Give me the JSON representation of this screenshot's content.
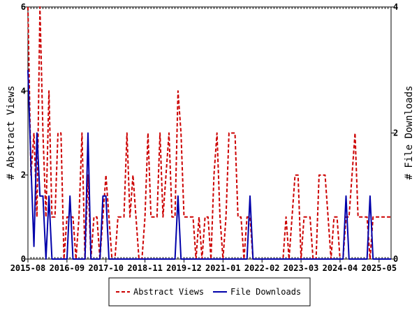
{
  "chart_data": {
    "type": "line",
    "title": "",
    "ylabel": "# Abstract Views",
    "y2label": "# File Downloads",
    "ylim": [
      0,
      6
    ],
    "y2lim": [
      0,
      4
    ],
    "yticks": [
      "0",
      "2",
      "4",
      "6"
    ],
    "y2ticks": [
      "0",
      "2",
      "4"
    ],
    "xlim": [
      "2015-08",
      "2025-09"
    ],
    "xticks": [
      "2015-08",
      "2016-09",
      "2017-10",
      "2018-11",
      "2019-12",
      "2021-01",
      "2022-02",
      "2023-03",
      "2024-04",
      "2025-05"
    ],
    "grid": false,
    "legend_position": "bottom",
    "colors": {
      "views": "#cc0000",
      "downloads": "#0000aa"
    },
    "series": [
      {
        "name": "Abstract Views",
        "axis": "left",
        "dash": true,
        "points": [
          [
            "2015-08",
            6
          ],
          [
            "2015-09",
            2
          ],
          [
            "2015-10",
            3
          ],
          [
            "2015-11",
            1
          ],
          [
            "2015-12",
            6
          ],
          [
            "2016-01",
            3
          ],
          [
            "2016-02",
            1
          ],
          [
            "2016-03",
            4
          ],
          [
            "2016-04",
            1
          ],
          [
            "2016-05",
            1
          ],
          [
            "2016-06",
            3
          ],
          [
            "2016-07",
            3
          ],
          [
            "2016-08",
            0
          ],
          [
            "2016-09",
            1
          ],
          [
            "2016-10",
            1
          ],
          [
            "2016-11",
            1
          ],
          [
            "2016-12",
            0
          ],
          [
            "2017-01",
            1
          ],
          [
            "2017-02",
            3
          ],
          [
            "2017-03",
            0
          ],
          [
            "2017-04",
            2
          ],
          [
            "2017-05",
            0
          ],
          [
            "2017-06",
            1
          ],
          [
            "2017-07",
            1
          ],
          [
            "2017-08",
            0
          ],
          [
            "2017-09",
            1
          ],
          [
            "2017-10",
            2
          ],
          [
            "2017-11",
            1
          ],
          [
            "2017-12",
            0
          ],
          [
            "2018-01",
            0
          ],
          [
            "2018-02",
            1
          ],
          [
            "2018-03",
            1
          ],
          [
            "2018-04",
            1
          ],
          [
            "2018-05",
            3
          ],
          [
            "2018-06",
            1
          ],
          [
            "2018-07",
            2
          ],
          [
            "2018-08",
            1
          ],
          [
            "2018-09",
            0
          ],
          [
            "2018-10",
            0
          ],
          [
            "2018-11",
            1
          ],
          [
            "2018-12",
            3
          ],
          [
            "2019-01",
            1
          ],
          [
            "2019-02",
            1
          ],
          [
            "2019-03",
            1
          ],
          [
            "2019-04",
            3
          ],
          [
            "2019-05",
            1
          ],
          [
            "2019-06",
            2
          ],
          [
            "2019-07",
            3
          ],
          [
            "2019-08",
            1
          ],
          [
            "2019-09",
            1
          ],
          [
            "2019-10",
            4
          ],
          [
            "2019-11",
            3
          ],
          [
            "2019-12",
            1
          ],
          [
            "2020-01",
            1
          ],
          [
            "2020-02",
            1
          ],
          [
            "2020-03",
            1
          ],
          [
            "2020-04",
            0
          ],
          [
            "2020-05",
            1
          ],
          [
            "2020-06",
            0
          ],
          [
            "2020-07",
            1
          ],
          [
            "2020-08",
            1
          ],
          [
            "2020-09",
            0
          ],
          [
            "2020-10",
            2
          ],
          [
            "2020-11",
            3
          ],
          [
            "2020-12",
            1
          ],
          [
            "2021-01",
            0
          ],
          [
            "2021-02",
            1
          ],
          [
            "2021-03",
            3
          ],
          [
            "2021-04",
            3
          ],
          [
            "2021-05",
            3
          ],
          [
            "2021-06",
            1
          ],
          [
            "2021-07",
            1
          ],
          [
            "2021-08",
            0
          ],
          [
            "2021-09",
            1
          ],
          [
            "2021-10",
            1
          ],
          [
            "2021-11",
            0
          ],
          [
            "2021-12",
            0
          ],
          [
            "2022-01",
            0
          ],
          [
            "2022-02",
            0
          ],
          [
            "2022-03",
            0
          ],
          [
            "2022-04",
            0
          ],
          [
            "2022-05",
            0
          ],
          [
            "2022-06",
            0
          ],
          [
            "2022-07",
            0
          ],
          [
            "2022-08",
            0
          ],
          [
            "2022-09",
            0
          ],
          [
            "2022-10",
            1
          ],
          [
            "2022-11",
            0
          ],
          [
            "2022-12",
            1
          ],
          [
            "2023-01",
            2
          ],
          [
            "2023-02",
            2
          ],
          [
            "2023-03",
            0
          ],
          [
            "2023-04",
            1
          ],
          [
            "2023-05",
            1
          ],
          [
            "2023-06",
            1
          ],
          [
            "2023-07",
            0
          ],
          [
            "2023-08",
            0
          ],
          [
            "2023-09",
            2
          ],
          [
            "2023-10",
            2
          ],
          [
            "2023-11",
            2
          ],
          [
            "2023-12",
            1
          ],
          [
            "2024-01",
            0
          ],
          [
            "2024-02",
            1
          ],
          [
            "2024-03",
            1
          ],
          [
            "2024-04",
            0
          ],
          [
            "2024-05",
            0
          ],
          [
            "2024-06",
            1
          ],
          [
            "2024-07",
            1
          ],
          [
            "2024-08",
            2
          ],
          [
            "2024-09",
            3
          ],
          [
            "2024-10",
            1
          ],
          [
            "2024-11",
            1
          ],
          [
            "2024-12",
            1
          ],
          [
            "2025-01",
            1
          ],
          [
            "2025-02",
            0
          ],
          [
            "2025-03",
            1
          ],
          [
            "2025-04",
            1
          ],
          [
            "2025-05",
            1
          ],
          [
            "2025-06",
            1
          ],
          [
            "2025-07",
            1
          ],
          [
            "2025-08",
            1
          ],
          [
            "2025-09",
            1
          ]
        ]
      },
      {
        "name": "File Downloads",
        "axis": "right",
        "dash": false,
        "points": [
          [
            "2015-08",
            3
          ],
          [
            "2015-09",
            1.5
          ],
          [
            "2015-10",
            0.2
          ],
          [
            "2015-11",
            2
          ],
          [
            "2015-12",
            1
          ],
          [
            "2016-01",
            1
          ],
          [
            "2016-02",
            0
          ],
          [
            "2016-03",
            1
          ],
          [
            "2016-04",
            0
          ],
          [
            "2016-05",
            0
          ],
          [
            "2016-06",
            0
          ],
          [
            "2016-07",
            0
          ],
          [
            "2016-08",
            0
          ],
          [
            "2016-09",
            0
          ],
          [
            "2016-10",
            1
          ],
          [
            "2016-11",
            0
          ],
          [
            "2016-12",
            0
          ],
          [
            "2017-01",
            0
          ],
          [
            "2017-02",
            0
          ],
          [
            "2017-03",
            0
          ],
          [
            "2017-04",
            2
          ],
          [
            "2017-05",
            0
          ],
          [
            "2017-06",
            0
          ],
          [
            "2017-07",
            0
          ],
          [
            "2017-08",
            0
          ],
          [
            "2017-09",
            1
          ],
          [
            "2017-10",
            1
          ],
          [
            "2017-11",
            0
          ],
          [
            "2017-12",
            0
          ],
          [
            "2018-01",
            0
          ],
          [
            "2018-02",
            0
          ],
          [
            "2018-03",
            0
          ],
          [
            "2018-04",
            0
          ],
          [
            "2018-05",
            0
          ],
          [
            "2018-06",
            0
          ],
          [
            "2018-07",
            0
          ],
          [
            "2018-08",
            0
          ],
          [
            "2018-09",
            0
          ],
          [
            "2018-10",
            0
          ],
          [
            "2018-11",
            0
          ],
          [
            "2018-12",
            0
          ],
          [
            "2019-01",
            0
          ],
          [
            "2019-02",
            0
          ],
          [
            "2019-03",
            0
          ],
          [
            "2019-04",
            0
          ],
          [
            "2019-05",
            0
          ],
          [
            "2019-06",
            0
          ],
          [
            "2019-07",
            0
          ],
          [
            "2019-08",
            0
          ],
          [
            "2019-09",
            0
          ],
          [
            "2019-10",
            1
          ],
          [
            "2019-11",
            0
          ],
          [
            "2019-12",
            0
          ],
          [
            "2020-01",
            0
          ],
          [
            "2020-02",
            0
          ],
          [
            "2020-03",
            0
          ],
          [
            "2020-04",
            0
          ],
          [
            "2020-05",
            0
          ],
          [
            "2020-06",
            0
          ],
          [
            "2020-07",
            0
          ],
          [
            "2020-08",
            0
          ],
          [
            "2020-09",
            0
          ],
          [
            "2020-10",
            0
          ],
          [
            "2020-11",
            0
          ],
          [
            "2020-12",
            0
          ],
          [
            "2021-01",
            0
          ],
          [
            "2021-02",
            0
          ],
          [
            "2021-03",
            0
          ],
          [
            "2021-04",
            0
          ],
          [
            "2021-05",
            0
          ],
          [
            "2021-06",
            0
          ],
          [
            "2021-07",
            0
          ],
          [
            "2021-08",
            0
          ],
          [
            "2021-09",
            0
          ],
          [
            "2021-10",
            1
          ],
          [
            "2021-11",
            0
          ],
          [
            "2021-12",
            0
          ],
          [
            "2022-01",
            0
          ],
          [
            "2022-02",
            0
          ],
          [
            "2022-03",
            0
          ],
          [
            "2022-04",
            0
          ],
          [
            "2022-05",
            0
          ],
          [
            "2022-06",
            0
          ],
          [
            "2022-07",
            0
          ],
          [
            "2022-08",
            0
          ],
          [
            "2022-09",
            0
          ],
          [
            "2022-10",
            0
          ],
          [
            "2022-11",
            0
          ],
          [
            "2022-12",
            0
          ],
          [
            "2023-01",
            0
          ],
          [
            "2023-02",
            0
          ],
          [
            "2023-03",
            0
          ],
          [
            "2023-04",
            0
          ],
          [
            "2023-05",
            0
          ],
          [
            "2023-06",
            0
          ],
          [
            "2023-07",
            0
          ],
          [
            "2023-08",
            0
          ],
          [
            "2023-09",
            0
          ],
          [
            "2023-10",
            0
          ],
          [
            "2023-11",
            0
          ],
          [
            "2023-12",
            0
          ],
          [
            "2024-01",
            0
          ],
          [
            "2024-02",
            0
          ],
          [
            "2024-03",
            0
          ],
          [
            "2024-04",
            0
          ],
          [
            "2024-05",
            0
          ],
          [
            "2024-06",
            1
          ],
          [
            "2024-07",
            0
          ],
          [
            "2024-08",
            0
          ],
          [
            "2024-09",
            0
          ],
          [
            "2024-10",
            0
          ],
          [
            "2024-11",
            0
          ],
          [
            "2024-12",
            0
          ],
          [
            "2025-01",
            0
          ],
          [
            "2025-02",
            1
          ],
          [
            "2025-03",
            0
          ],
          [
            "2025-04",
            0
          ],
          [
            "2025-05",
            0
          ],
          [
            "2025-06",
            0
          ],
          [
            "2025-07",
            0
          ],
          [
            "2025-08",
            0
          ],
          [
            "2025-09",
            0
          ]
        ]
      }
    ]
  }
}
